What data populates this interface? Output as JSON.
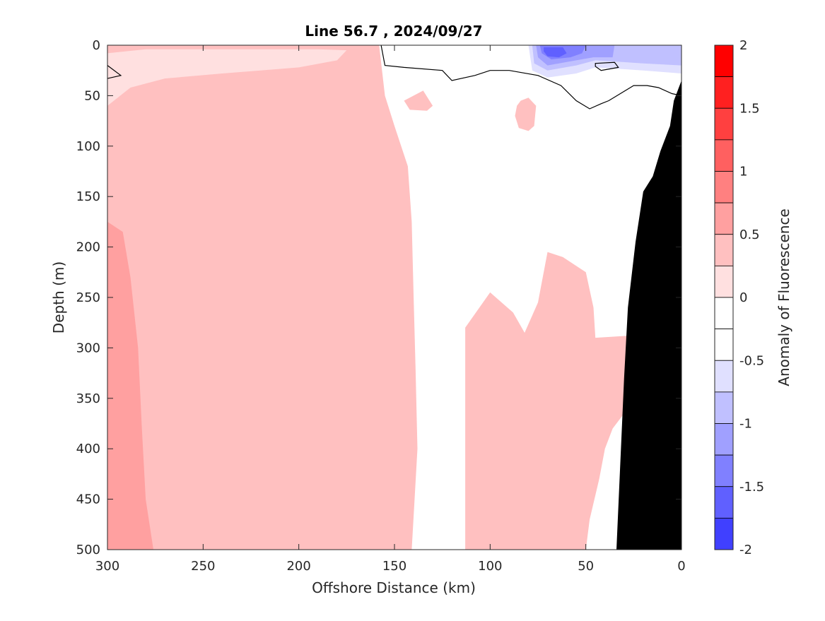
{
  "chart_data": {
    "type": "contour",
    "title": "Line 56.7 , 2024/09/27",
    "xlabel": "Offshore Distance (km)",
    "ylabel": "Depth (m)",
    "xlim": [
      300,
      0
    ],
    "x_reversed": true,
    "ylim": [
      0,
      500
    ],
    "y_reversed": true,
    "x_ticks": [
      300,
      250,
      200,
      150,
      100,
      50,
      0
    ],
    "y_ticks": [
      0,
      50,
      100,
      150,
      200,
      250,
      300,
      350,
      400,
      450,
      500
    ],
    "colorbar": {
      "label": "Anomaly of Fluorescence",
      "limits": [
        -2,
        2
      ],
      "ticks": [
        2,
        1.5,
        1,
        0.5,
        0,
        -0.5,
        -1,
        -1.5,
        -2
      ],
      "levels": [
        2,
        1.75,
        1.5,
        1.25,
        1,
        0.75,
        0.5,
        0.25,
        0,
        -0.25,
        -0.5,
        -0.75,
        -1,
        -1.25,
        -1.5,
        -1.75,
        -2
      ],
      "colors": [
        "#ff0000",
        "#ff2020",
        "#ff4040",
        "#ff6060",
        "#ff8080",
        "#ffa0a0",
        "#ffc0c0",
        "#ffe0e0",
        "#ffffff",
        "#ffffff",
        "#e0e0ff",
        "#c0c0ff",
        "#a0a0ff",
        "#8080ff",
        "#6060ff",
        "#4040ff",
        "#0000ff"
      ]
    },
    "regions": [
      {
        "value": 0.375,
        "desc": "anomaly 0.25-0.5",
        "polygon": [
          [
            300,
            0
          ],
          [
            158,
            0
          ],
          [
            155,
            50
          ],
          [
            150,
            80
          ],
          [
            143,
            120
          ],
          [
            141,
            175
          ],
          [
            140,
            250
          ],
          [
            139,
            320
          ],
          [
            138,
            400
          ],
          [
            141,
            500
          ],
          [
            300,
            500
          ]
        ]
      },
      {
        "value": 0.625,
        "desc": "anomaly 0.5-0.75",
        "polygon": [
          [
            300,
            175
          ],
          [
            292,
            185
          ],
          [
            288,
            230
          ],
          [
            284,
            300
          ],
          [
            282,
            380
          ],
          [
            280,
            450
          ],
          [
            276,
            500
          ],
          [
            300,
            500
          ]
        ]
      },
      {
        "value": 0.375,
        "desc": "anomaly 0.25-0.5",
        "polygon": [
          [
            113,
            280
          ],
          [
            100,
            245
          ],
          [
            88,
            265
          ],
          [
            82,
            285
          ],
          [
            75,
            255
          ],
          [
            70,
            205
          ],
          [
            62,
            210
          ],
          [
            50,
            225
          ],
          [
            46,
            260
          ],
          [
            45,
            290
          ],
          [
            28,
            288
          ],
          [
            30,
            365
          ],
          [
            36,
            380
          ],
          [
            40,
            400
          ],
          [
            43,
            430
          ],
          [
            48,
            470
          ],
          [
            50,
            500
          ],
          [
            113,
            500
          ]
        ]
      },
      {
        "value": 0.375,
        "desc": "anomaly 0.25-0.5",
        "polygon": [
          [
            84,
            55
          ],
          [
            80,
            52
          ],
          [
            76,
            60
          ],
          [
            77,
            80
          ],
          [
            80,
            85
          ],
          [
            85,
            82
          ],
          [
            87,
            70
          ],
          [
            86,
            60
          ]
        ]
      },
      {
        "value": 0.375,
        "desc": "anomaly 0.25-0.5",
        "polygon": [
          [
            145,
            55
          ],
          [
            135,
            45
          ],
          [
            130,
            60
          ],
          [
            133,
            65
          ],
          [
            142,
            64
          ]
        ]
      },
      {
        "value": 0,
        "desc": "anomaly 0",
        "polygon": [
          [
            300,
            0
          ],
          [
            300,
            60
          ],
          [
            288,
            42
          ],
          [
            270,
            33
          ],
          [
            240,
            28
          ],
          [
            220,
            25
          ],
          [
            200,
            22
          ],
          [
            180,
            15
          ],
          [
            175,
            5
          ],
          [
            190,
            4
          ],
          [
            280,
            4
          ],
          [
            300,
            8
          ]
        ]
      },
      {
        "value": -0.375,
        "desc": "anomaly -0.25 to -0.5",
        "polygon": [
          [
            150,
            0
          ],
          [
            90,
            0
          ],
          [
            88,
            10
          ],
          [
            100,
            13
          ],
          [
            120,
            12
          ],
          [
            140,
            10
          ]
        ]
      },
      {
        "value": -0.375,
        "desc": "anomaly -0.25 to -0.5",
        "polygon": [
          [
            83,
            0
          ],
          [
            0,
            0
          ],
          [
            0,
            35
          ],
          [
            25,
            30
          ],
          [
            45,
            28
          ],
          [
            55,
            35
          ],
          [
            70,
            40
          ],
          [
            80,
            35
          ],
          [
            84,
            20
          ]
        ]
      },
      {
        "value": -0.625,
        "desc": "anomaly -0.5 to -0.75",
        "polygon": [
          [
            80,
            0
          ],
          [
            0,
            0
          ],
          [
            0,
            28
          ],
          [
            20,
            25
          ],
          [
            45,
            22
          ],
          [
            55,
            28
          ],
          [
            70,
            32
          ],
          [
            78,
            25
          ]
        ]
      },
      {
        "value": -0.875,
        "desc": "anomaly -0.75 to -1",
        "polygon": [
          [
            78,
            0
          ],
          [
            0,
            0
          ],
          [
            0,
            20
          ],
          [
            20,
            18
          ],
          [
            45,
            15
          ],
          [
            55,
            20
          ],
          [
            70,
            25
          ],
          [
            77,
            18
          ]
        ]
      },
      {
        "value": -1.125,
        "desc": "anomaly -1 to -1.25",
        "polygon": [
          [
            76,
            0
          ],
          [
            35,
            0
          ],
          [
            36,
            12
          ],
          [
            46,
            12
          ],
          [
            55,
            15
          ],
          [
            70,
            20
          ],
          [
            75,
            12
          ]
        ]
      },
      {
        "value": -1.375,
        "desc": "anomaly -1.25 to -1.5",
        "polygon": [
          [
            74,
            0
          ],
          [
            50,
            0
          ],
          [
            52,
            8
          ],
          [
            58,
            12
          ],
          [
            68,
            14
          ],
          [
            73,
            8
          ]
        ]
      },
      {
        "value": -1.625,
        "desc": "anomaly -1.5 to -1.75",
        "polygon": [
          [
            72,
            2
          ],
          [
            62,
            2
          ],
          [
            60,
            8
          ],
          [
            64,
            12
          ],
          [
            70,
            11
          ],
          [
            72,
            6
          ]
        ]
      }
    ],
    "zero_contour": [
      [
        157,
        0
      ],
      [
        155,
        20
      ],
      [
        145,
        22
      ],
      [
        125,
        25
      ],
      [
        120,
        35
      ],
      [
        108,
        30
      ],
      [
        100,
        25
      ],
      [
        90,
        25
      ],
      [
        75,
        30
      ],
      [
        63,
        40
      ],
      [
        55,
        55
      ],
      [
        48,
        63
      ],
      [
        42,
        58
      ],
      [
        38,
        55
      ],
      [
        25,
        40
      ],
      [
        18,
        40
      ],
      [
        12,
        42
      ],
      [
        5,
        48
      ],
      [
        0,
        50
      ]
    ],
    "zero_contour_left": [
      [
        300,
        20
      ],
      [
        293,
        30
      ],
      [
        300,
        33
      ]
    ],
    "small_contour": [
      [
        45,
        18
      ],
      [
        35,
        17
      ],
      [
        33,
        22
      ],
      [
        42,
        25
      ],
      [
        45,
        21
      ]
    ],
    "land_mask": [
      [
        0,
        35
      ],
      [
        4,
        55
      ],
      [
        6,
        80
      ],
      [
        11,
        105
      ],
      [
        15,
        130
      ],
      [
        20,
        145
      ],
      [
        24,
        195
      ],
      [
        28,
        260
      ],
      [
        30,
        330
      ],
      [
        34,
        500
      ],
      [
        0,
        500
      ]
    ]
  }
}
